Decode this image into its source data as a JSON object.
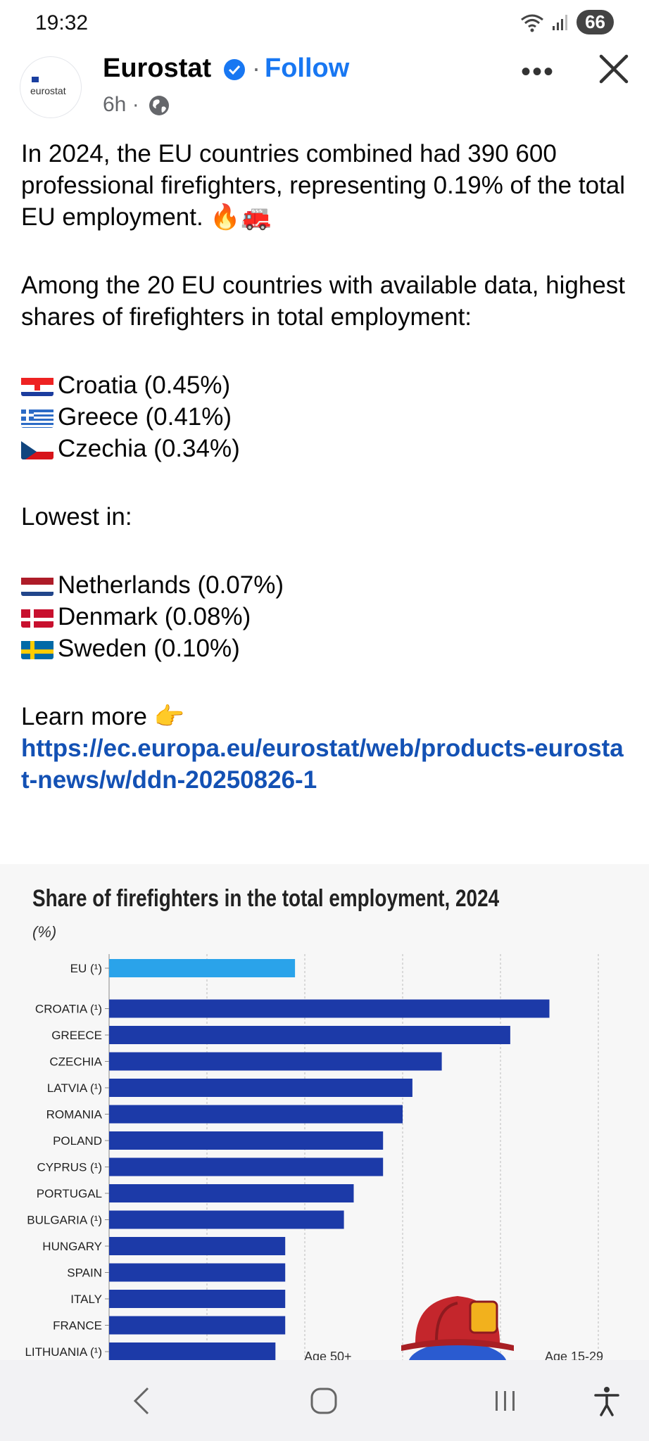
{
  "status": {
    "time": "19:32",
    "battery": "66"
  },
  "post": {
    "page_name": "Eurostat",
    "follow": "Follow",
    "time": "6h",
    "avatar_text": "eurostat",
    "intro": "In 2024, the EU countries combined had 390 600 professional firefighters, representing 0.19% of the total EU employment. 🔥🚒",
    "highest_intro": "Among the 20 EU countries with available data, highest shares of firefighters in total employment:",
    "highest": [
      {
        "flag": "croatia",
        "text": "Croatia (0.45%)"
      },
      {
        "flag": "greece",
        "text": "Greece (0.41%)"
      },
      {
        "flag": "czechia",
        "text": "Czechia (0.34%)"
      }
    ],
    "lowest_intro": "Lowest in:",
    "lowest": [
      {
        "flag": "netherlands",
        "text": "Netherlands (0.07%)"
      },
      {
        "flag": "denmark",
        "text": "Denmark (0.08%)"
      },
      {
        "flag": "sweden",
        "text": "Sweden (0.10%)"
      }
    ],
    "learn_more": "Learn more 👉",
    "link": "https://ec.europa.eu/eurostat/web/products-eurostat-news/w/ddn-20250826-1"
  },
  "chart_data": {
    "type": "bar",
    "orientation": "horizontal",
    "title": "Share of firefighters in the total employment, 2024",
    "unit": "(%)",
    "categories": [
      "EU (¹)",
      "CROATIA (¹)",
      "GREECE",
      "CZECHIA",
      "LATVIA (¹)",
      "ROMANIA",
      "POLAND",
      "CYPRUS (¹)",
      "PORTUGAL",
      "BULGARIA (¹)",
      "HUNGARY",
      "SPAIN",
      "ITALY",
      "FRANCE",
      "LITHUANIA (¹)"
    ],
    "values": [
      0.19,
      0.45,
      0.41,
      0.34,
      0.31,
      0.3,
      0.28,
      0.28,
      0.25,
      0.24,
      0.18,
      0.18,
      0.18,
      0.18,
      0.17
    ],
    "colors": {
      "eu": "#2aa3ea",
      "country": "#1c3aa8"
    },
    "xlim": [
      0,
      0.5
    ],
    "grid": true,
    "annotations": [
      "Age 50+",
      "Age 15-29"
    ]
  },
  "colors": {
    "accent": "#1877f2",
    "link": "#1351b4"
  },
  "icons": [
    "wifi-icon",
    "signal-icon",
    "verified-icon",
    "globe-icon",
    "more-icon",
    "close-icon",
    "back-icon",
    "home-icon",
    "recents-icon",
    "accessibility-icon"
  ]
}
